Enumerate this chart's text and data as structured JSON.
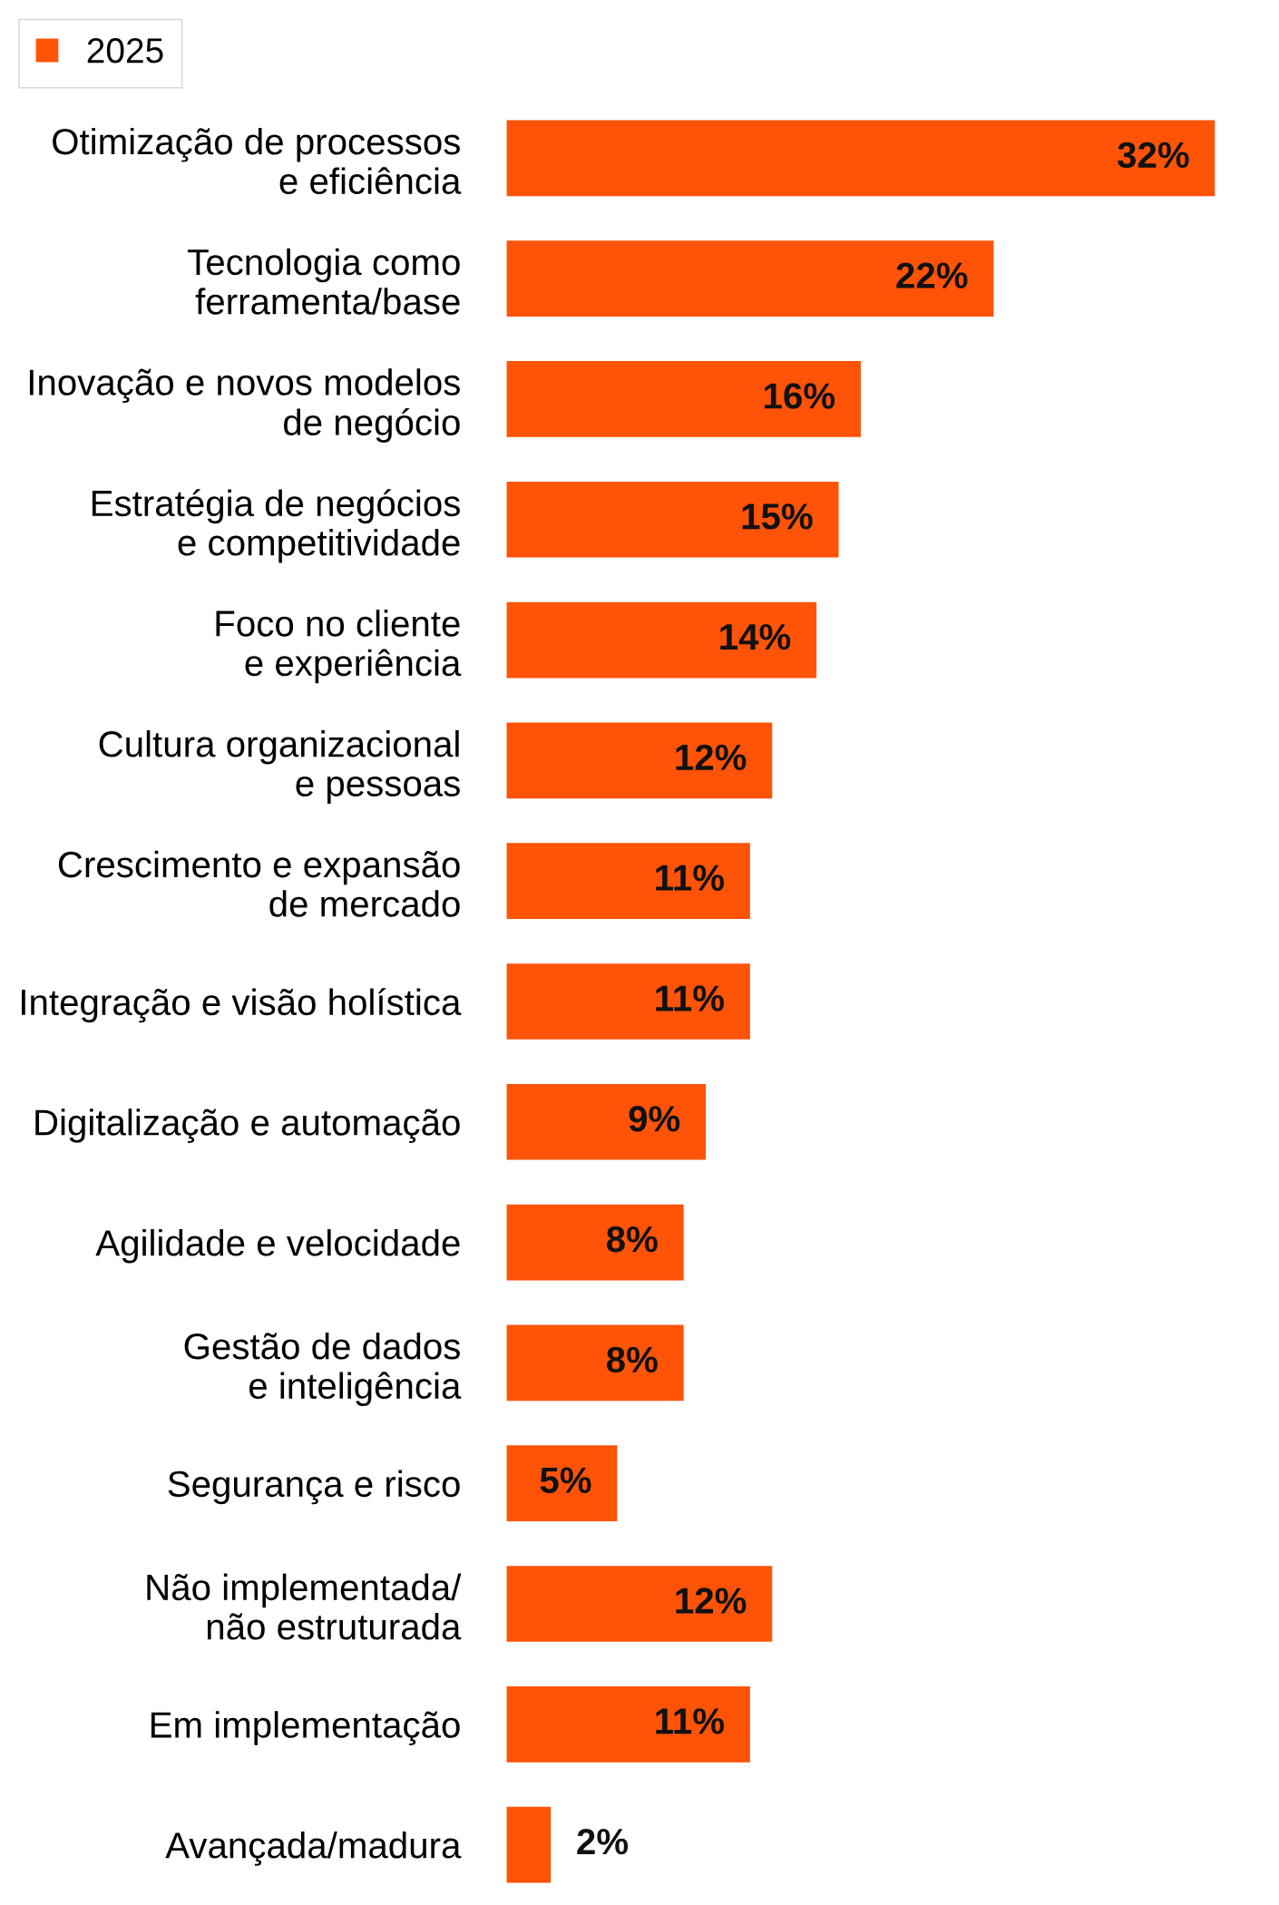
{
  "chart_data": {
    "type": "bar",
    "orientation": "horizontal",
    "categories": [
      "Otimização de processos\ne eficiência",
      "Tecnologia como\nferramenta/base",
      "Inovação e novos modelos\nde negócio",
      "Estratégia de negócios\ne competitividade",
      "Foco no cliente\ne experiência",
      "Cultura organizacional\ne pessoas",
      "Crescimento e expansão\nde mercado",
      "Integração e visão holística",
      "Digitalização e automação",
      "Agilidade e velocidade",
      "Gestão de dados\ne inteligência",
      "Segurança e risco",
      "Não implementada/\nnão estruturada",
      "Em implementação",
      "Avançada/madura"
    ],
    "series": [
      {
        "name": "2025",
        "color": "#ff5308",
        "values": [
          32,
          22,
          16,
          15,
          14,
          12,
          11,
          11,
          9,
          8,
          8,
          5,
          12,
          11,
          2
        ],
        "value_labels": [
          "32%",
          "22%",
          "16%",
          "15%",
          "14%",
          "12%",
          "11%",
          "11%",
          "9%",
          "8%",
          "8%",
          "5%",
          "12%",
          "11%",
          "2%"
        ]
      }
    ],
    "legend": "top left",
    "grid": false
  }
}
